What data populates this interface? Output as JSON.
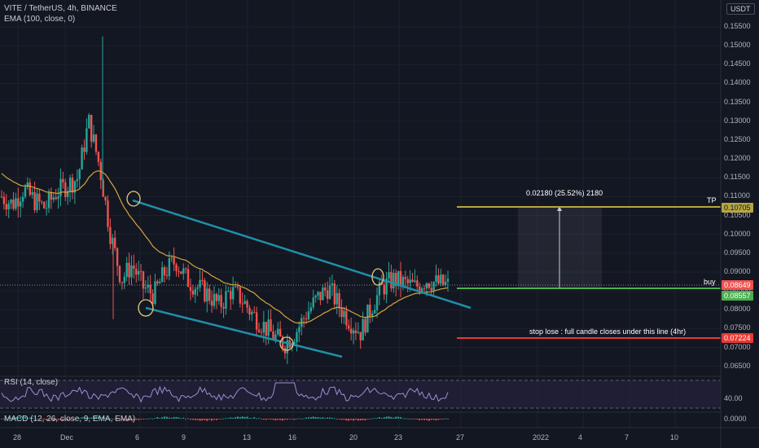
{
  "header": {
    "symbol_line": "VITE / TetherUS, 4h, BINANCE",
    "ema_line": "EMA (100, close, 0)",
    "currency": "USDT"
  },
  "price_axis": [
    "0.15500",
    "0.15000",
    "0.14500",
    "0.14000",
    "0.13500",
    "0.13000",
    "0.12500",
    "0.12000",
    "0.11500",
    "0.11000",
    "0.10500",
    "0.10000",
    "0.09500",
    "0.09000",
    "0.08500",
    "0.08000",
    "0.07500",
    "0.07000",
    "0.06500"
  ],
  "price_tags": {
    "tp_value": "0.10705",
    "last_value": "0.08649",
    "buy_value": "0.08557",
    "sl_value": "0.07224"
  },
  "annotations": {
    "measure": "0.02180 (25.52%) 2180",
    "tp": "TP",
    "buy": "buy",
    "stop": "stop lose : full candle closes under this line (4hr)"
  },
  "rsi": {
    "label": "RSI (14, close)",
    "level_value": "40.00"
  },
  "macd": {
    "label": "MACD (12, 26, close, 9, EMA, EMA)",
    "zero_value": "0.0000"
  },
  "date_axis": [
    "28",
    "Dec",
    "6",
    "9",
    "13",
    "16",
    "20",
    "23",
    "27",
    "2022",
    "4",
    "7",
    "10"
  ],
  "colors": {
    "background": "#131722",
    "up": "#26a69a",
    "down": "#ef5350",
    "ema": "#d7a43a",
    "trendline": "#1f8fa8",
    "tp_line": "#b5a642",
    "buy_line": "#4caf50",
    "sl_line": "#e53935"
  },
  "chart_data": {
    "type": "candlestick",
    "symbol": "VITE / TetherUS",
    "interval": "4h",
    "exchange": "BINANCE",
    "x_ticks": [
      "28",
      "Dec",
      "6",
      "9",
      "13",
      "16",
      "20",
      "23",
      "27",
      "2022",
      "4",
      "7",
      "10"
    ],
    "y_range": [
      0.063,
      0.158
    ],
    "levels": {
      "tp": 0.10705,
      "buy": 0.08557,
      "last": 0.08649,
      "stop_loss": 0.07224
    },
    "approx_price_path": [
      0.11,
      0.108,
      0.112,
      0.109,
      0.107,
      0.111,
      0.113,
      0.115,
      0.13,
      0.118,
      0.1,
      0.088,
      0.092,
      0.086,
      0.084,
      0.09,
      0.093,
      0.088,
      0.086,
      0.084,
      0.081,
      0.085,
      0.083,
      0.079,
      0.076,
      0.073,
      0.071,
      0.074,
      0.079,
      0.083,
      0.086,
      0.081,
      0.077,
      0.074,
      0.081,
      0.086,
      0.088,
      0.087,
      0.086,
      0.088,
      0.087,
      0.0865
    ]
  }
}
